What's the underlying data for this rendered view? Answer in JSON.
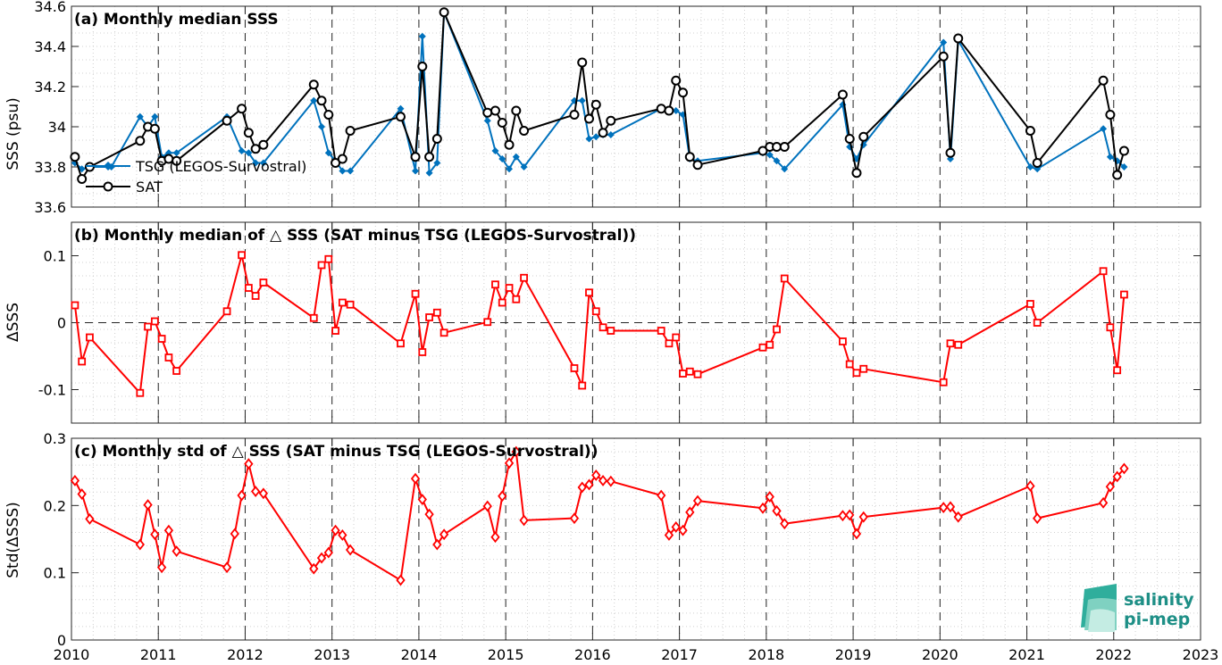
{
  "chart_data": [
    {
      "type": "line",
      "title": "(a) Monthly median SSS",
      "ylabel": "SSS (psu)",
      "ylim": [
        33.6,
        34.6
      ],
      "yticks": [
        33.6,
        33.8,
        34,
        34.2,
        34.4,
        34.6
      ],
      "ytick_labels": [
        "33.6",
        "33.8",
        "34",
        "34.2",
        "34.4",
        "34.6"
      ],
      "xlim": [
        2010,
        2023
      ],
      "grid": true,
      "legend_position": "lower-left",
      "colors": {
        "tsg": "#0072bd",
        "sat": "#000000"
      },
      "series": [
        {
          "name": "TSG (LEGOS-Survostral)",
          "marker": "diamond",
          "x": [
            2010.04,
            2010.12,
            2010.21,
            2010.46,
            2010.79,
            2010.88,
            2010.96,
            2011.04,
            2011.12,
            2011.21,
            2011.79,
            2011.96,
            2012.04,
            2012.12,
            2012.21,
            2012.79,
            2012.88,
            2012.96,
            2013.04,
            2013.12,
            2013.21,
            2013.79,
            2013.96,
            2014.04,
            2014.12,
            2014.21,
            2014.29,
            2014.79,
            2014.88,
            2014.96,
            2015.04,
            2015.12,
            2015.21,
            2015.79,
            2015.88,
            2015.96,
            2016.04,
            2016.12,
            2016.21,
            2016.79,
            2016.88,
            2016.96,
            2017.04,
            2017.12,
            2017.21,
            2017.96,
            2018.04,
            2018.12,
            2018.21,
            2018.88,
            2018.96,
            2019.04,
            2019.12,
            2020.04,
            2020.12,
            2020.21,
            2021.04,
            2021.12,
            2021.88,
            2021.96,
            2022.04,
            2022.12
          ],
          "values": [
            33.82,
            33.79,
            33.8,
            33.8,
            34.05,
            34.0,
            34.05,
            33.85,
            33.87,
            33.87,
            34.05,
            33.88,
            33.87,
            33.82,
            33.82,
            34.13,
            34.0,
            33.87,
            33.83,
            33.78,
            33.78,
            34.09,
            33.78,
            34.45,
            33.77,
            33.82,
            34.57,
            34.03,
            33.88,
            33.84,
            33.79,
            33.85,
            33.8,
            34.13,
            34.13,
            33.94,
            33.95,
            33.96,
            33.96,
            34.09,
            34.08,
            34.08,
            34.06,
            33.84,
            33.83,
            33.87,
            33.86,
            33.83,
            33.79,
            34.11,
            33.9,
            33.84,
            33.91,
            34.42,
            33.84,
            34.43,
            33.8,
            33.79,
            33.99,
            33.85,
            33.83,
            33.8
          ]
        },
        {
          "name": "SAT",
          "marker": "circle",
          "x": [
            2010.04,
            2010.12,
            2010.21,
            2010.79,
            2010.88,
            2010.96,
            2011.04,
            2011.12,
            2011.21,
            2011.79,
            2011.96,
            2012.04,
            2012.12,
            2012.21,
            2012.79,
            2012.88,
            2012.96,
            2013.04,
            2013.12,
            2013.21,
            2013.79,
            2013.96,
            2014.04,
            2014.12,
            2014.21,
            2014.29,
            2014.79,
            2014.88,
            2014.96,
            2015.04,
            2015.12,
            2015.21,
            2015.79,
            2015.88,
            2015.96,
            2016.04,
            2016.12,
            2016.21,
            2016.79,
            2016.88,
            2016.96,
            2017.04,
            2017.12,
            2017.21,
            2017.96,
            2018.04,
            2018.12,
            2018.21,
            2018.88,
            2018.96,
            2019.04,
            2019.12,
            2020.04,
            2020.12,
            2020.21,
            2021.04,
            2021.12,
            2021.88,
            2021.96,
            2022.04,
            2022.12
          ],
          "values": [
            33.85,
            33.74,
            33.8,
            33.93,
            34.0,
            33.99,
            33.83,
            33.84,
            33.83,
            34.03,
            34.09,
            33.97,
            33.89,
            33.91,
            34.21,
            34.13,
            34.06,
            33.82,
            33.84,
            33.98,
            34.05,
            33.85,
            34.3,
            33.85,
            33.94,
            34.57,
            34.07,
            34.08,
            34.02,
            33.91,
            34.08,
            33.98,
            34.06,
            34.32,
            34.04,
            34.11,
            33.97,
            34.03,
            34.09,
            34.08,
            34.23,
            34.17,
            33.85,
            33.81,
            33.88,
            33.9,
            33.9,
            33.9,
            34.16,
            33.94,
            33.77,
            33.95,
            34.35,
            33.87,
            34.44,
            33.98,
            33.82,
            34.23,
            34.06,
            33.76,
            33.88
          ]
        }
      ]
    },
    {
      "type": "line",
      "title": "(b) Monthly median of △ SSS (SAT minus TSG (LEGOS-Survostral))",
      "ylabel": "ΔSSS",
      "ylim": [
        -0.15,
        0.15
      ],
      "yticks": [
        -0.1,
        0,
        0.1
      ],
      "ytick_labels": [
        "-0.1",
        "0",
        "0.1"
      ],
      "xlim": [
        2010,
        2023
      ],
      "grid": true,
      "zero_line": true,
      "colors": {
        "line": "#ff0000"
      },
      "series": [
        {
          "marker": "square",
          "x": [
            2010.04,
            2010.12,
            2010.21,
            2010.79,
            2010.88,
            2010.96,
            2011.04,
            2011.12,
            2011.21,
            2011.79,
            2011.96,
            2012.04,
            2012.12,
            2012.21,
            2012.79,
            2012.88,
            2012.96,
            2013.04,
            2013.12,
            2013.21,
            2013.79,
            2013.96,
            2014.04,
            2014.12,
            2014.21,
            2014.29,
            2014.79,
            2014.88,
            2014.96,
            2015.04,
            2015.12,
            2015.21,
            2015.79,
            2015.88,
            2015.96,
            2016.04,
            2016.12,
            2016.21,
            2016.79,
            2016.88,
            2016.96,
            2017.04,
            2017.12,
            2017.21,
            2017.96,
            2018.04,
            2018.12,
            2018.21,
            2018.88,
            2018.96,
            2019.04,
            2019.12,
            2020.04,
            2020.12,
            2020.21,
            2021.04,
            2021.12,
            2021.88,
            2021.96,
            2022.04,
            2022.12
          ],
          "values": [
            0.026,
            -0.058,
            -0.022,
            -0.105,
            -0.006,
            0.002,
            -0.024,
            -0.052,
            -0.072,
            0.017,
            0.101,
            0.052,
            0.04,
            0.06,
            0.007,
            0.086,
            0.095,
            -0.012,
            0.03,
            0.027,
            -0.031,
            0.043,
            -0.044,
            0.008,
            0.015,
            -0.015,
            0.001,
            0.057,
            0.03,
            0.052,
            0.035,
            0.067,
            -0.068,
            -0.094,
            0.045,
            0.017,
            -0.007,
            -0.012,
            -0.012,
            -0.031,
            -0.022,
            -0.076,
            -0.073,
            -0.077,
            -0.037,
            -0.033,
            -0.01,
            0.066,
            -0.028,
            -0.062,
            -0.075,
            -0.069,
            -0.089,
            -0.031,
            -0.033,
            0.028,
            0.0,
            0.077,
            -0.007,
            -0.071,
            0.042
          ]
        }
      ]
    },
    {
      "type": "line",
      "title": "(c) Monthly std of △ SSS (SAT minus TSG (LEGOS-Survostral))",
      "ylabel": "Std(ΔSSS)",
      "ylim": [
        0,
        0.3
      ],
      "yticks": [
        0,
        0.1,
        0.2,
        0.3
      ],
      "ytick_labels": [
        "0",
        "0.1",
        "0.2",
        "0.3"
      ],
      "xlim": [
        2010,
        2023
      ],
      "xticks": [
        2010,
        2011,
        2012,
        2013,
        2014,
        2015,
        2016,
        2017,
        2018,
        2019,
        2020,
        2021,
        2022,
        2023
      ],
      "xtick_labels": [
        "2010",
        "2011",
        "2012",
        "2013",
        "2014",
        "2015",
        "2016",
        "2017",
        "2018",
        "2019",
        "2020",
        "2021",
        "2022",
        "2023"
      ],
      "grid": true,
      "colors": {
        "line": "#ff0000"
      },
      "series": [
        {
          "marker": "diamond",
          "x": [
            2010.04,
            2010.12,
            2010.21,
            2010.79,
            2010.88,
            2010.96,
            2011.04,
            2011.12,
            2011.21,
            2011.79,
            2011.88,
            2011.96,
            2012.04,
            2012.12,
            2012.21,
            2012.79,
            2012.88,
            2012.96,
            2013.04,
            2013.12,
            2013.21,
            2013.79,
            2013.96,
            2014.04,
            2014.12,
            2014.21,
            2014.29,
            2014.79,
            2014.88,
            2014.96,
            2015.04,
            2015.12,
            2015.21,
            2015.79,
            2015.88,
            2015.96,
            2016.04,
            2016.12,
            2016.21,
            2016.79,
            2016.88,
            2016.96,
            2017.04,
            2017.12,
            2017.21,
            2017.96,
            2018.04,
            2018.12,
            2018.21,
            2018.88,
            2018.96,
            2019.04,
            2019.12,
            2020.04,
            2020.12,
            2020.21,
            2021.04,
            2021.12,
            2021.88,
            2021.96,
            2022.04,
            2022.12
          ],
          "values": [
            0.237,
            0.217,
            0.18,
            0.142,
            0.201,
            0.157,
            0.108,
            0.163,
            0.132,
            0.108,
            0.158,
            0.215,
            0.262,
            0.221,
            0.218,
            0.106,
            0.122,
            0.13,
            0.163,
            0.156,
            0.134,
            0.089,
            0.24,
            0.209,
            0.187,
            0.142,
            0.157,
            0.199,
            0.153,
            0.214,
            0.263,
            0.28,
            0.178,
            0.181,
            0.227,
            0.231,
            0.245,
            0.237,
            0.236,
            0.215,
            0.156,
            0.168,
            0.163,
            0.19,
            0.207,
            0.196,
            0.213,
            0.192,
            0.173,
            0.185,
            0.186,
            0.158,
            0.183,
            0.197,
            0.198,
            0.183,
            0.229,
            0.181,
            0.204,
            0.228,
            0.243,
            0.255
          ]
        }
      ]
    }
  ],
  "logo": {
    "line1": "salinity",
    "line2": "pi-mep"
  }
}
